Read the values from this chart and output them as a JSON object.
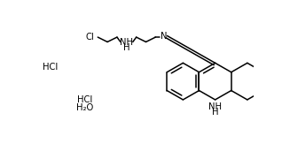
{
  "background_color": "#ffffff",
  "line_color": "#000000",
  "text_color": "#000000",
  "line_width": 1.1,
  "font_size": 7.2,
  "fig_width": 3.18,
  "fig_height": 1.71,
  "dpi": 100,
  "labels": {
    "Cl": "Cl",
    "NH_chain": "NH\nH",
    "N_imine": "N",
    "HCl_left": "HCl",
    "HCl_bottom": "HCl",
    "H2O": "H₂O",
    "NH_ring": "NH\nH"
  }
}
